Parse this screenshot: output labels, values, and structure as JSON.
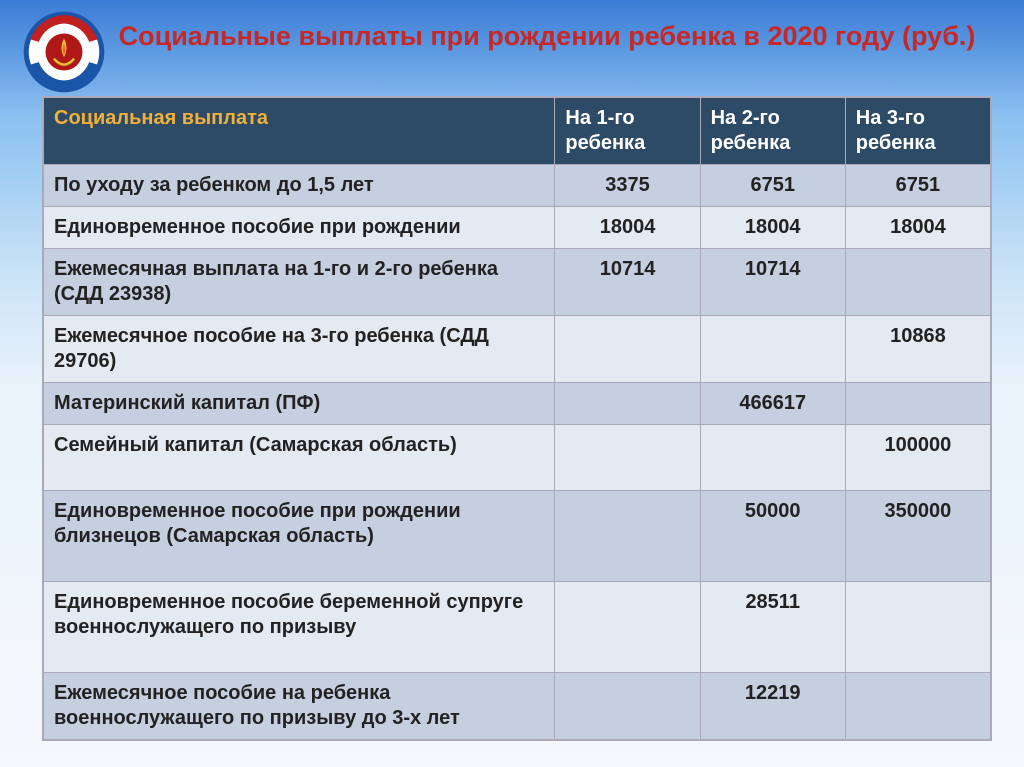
{
  "title": "Социальные выплаты при рождении ребенка в 2020 году  (руб.)",
  "colors": {
    "title": "#c62828",
    "header_bg": "#2d4a66",
    "header_text": "#ffffff",
    "header_first": "#f0b03a",
    "row_odd": "#c6cfdf",
    "row_even": "#e4eaf2",
    "border": "#a8a8b8"
  },
  "table": {
    "headers": [
      "Социальная выплата",
      "На 1-го ребенка",
      "На 2-го ребенка",
      "На 3-го ребенка"
    ],
    "rows": [
      {
        "label": "По уходу за ребенком до 1,5 лет",
        "cells": [
          "3375",
          "6751",
          "6751"
        ]
      },
      {
        "label": "Единовременное пособие при рождении",
        "cells": [
          "18004",
          "18004",
          "18004"
        ]
      },
      {
        "label": "Ежемесячная выплата на 1-го и 2-го ребенка (СДД  23938)",
        "cells": [
          "10714",
          "10714",
          ""
        ]
      },
      {
        "label": "Ежемесячное пособие на 3-го ребенка (СДД 29706)",
        "cells": [
          "",
          "",
          "10868"
        ]
      },
      {
        "label": "Материнский капитал (ПФ)",
        "cells": [
          "",
          "466617",
          ""
        ]
      },
      {
        "label": "Семейный капитал (Самарская область)",
        "cells": [
          "",
          "",
          "100000"
        ]
      },
      {
        "label": "Единовременное пособие при рождении близнецов (Самарская область)",
        "cells": [
          "",
          "50000",
          "350000"
        ]
      },
      {
        "label": "Единовременное пособие беременной супруге военнослужащего по призыву",
        "cells": [
          "",
          "28511",
          ""
        ]
      },
      {
        "label": "Ежемесячное пособие на ребенка военнослужащего по призыву до 3-х лет",
        "cells": [
          "",
          "12219",
          ""
        ]
      }
    ],
    "row_heights_extra": {
      "5": 24,
      "6": 24,
      "7": 24
    }
  }
}
